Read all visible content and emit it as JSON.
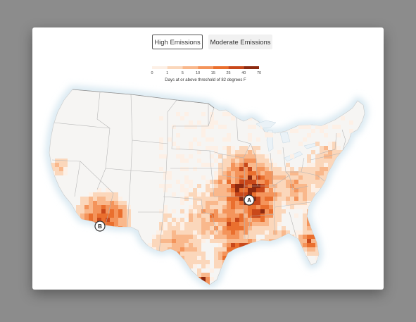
{
  "toggles": {
    "high": {
      "label": "High Emissions",
      "selected": true
    },
    "moderate": {
      "label": "Moderate Emissions",
      "selected": false
    }
  },
  "legend": {
    "caption": "Days at or above threshold of 82 degrees F",
    "ticks": [
      "0",
      "1",
      "5",
      "10",
      "15",
      "25",
      "40",
      "70"
    ],
    "colors": [
      "#fdf0e6",
      "#fbd7bb",
      "#f9b88c",
      "#f4945b",
      "#ea6f2e",
      "#c9481a",
      "#8d2a10"
    ]
  },
  "markers": [
    {
      "label": "A"
    },
    {
      "label": "B"
    }
  ],
  "colors": {
    "background": "#8c8c8c",
    "card": "#ffffff",
    "land": "#f6f5f3",
    "water_glow": "#d9e9f2",
    "borders": "#b5b5b5"
  }
}
